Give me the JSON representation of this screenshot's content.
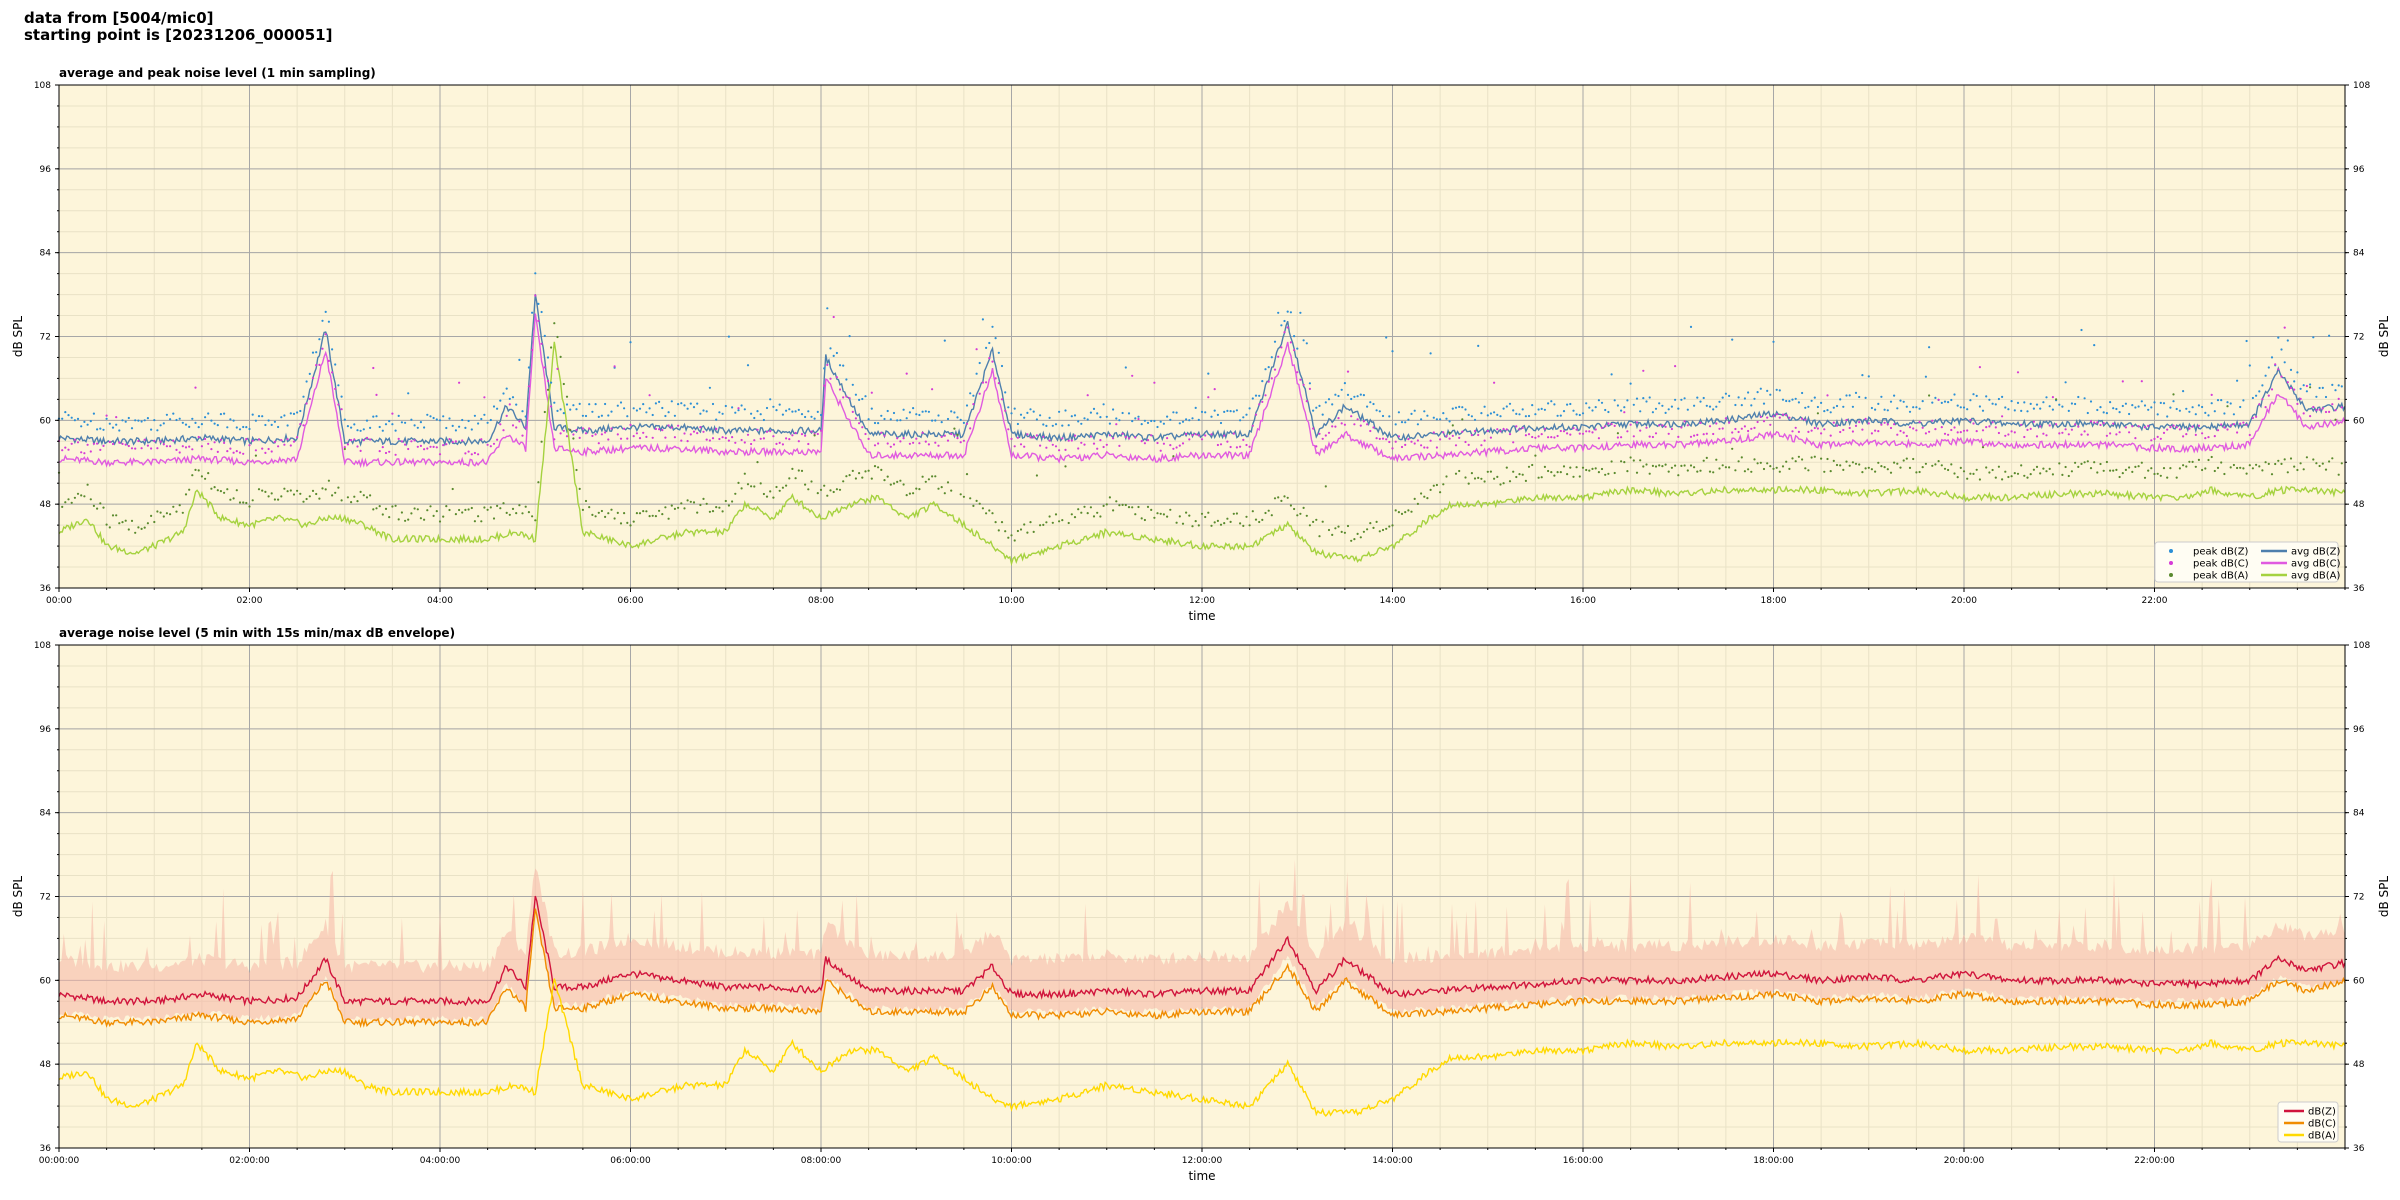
{
  "header": {
    "line1": "data from [5004/mic0]",
    "line2": "starting point is [20231206_000051]"
  },
  "colors": {
    "plot_bg": "#fdf5da",
    "grid_major": "#a7a7a7",
    "grid_minor": "#e9e2c6",
    "peak_z": "#2b8fd6",
    "peak_c": "#d63bd6",
    "peak_a": "#5a8a2e",
    "avg_z": "#4e7fad",
    "avg_c": "#e05ae0",
    "avg_a": "#a5d23f",
    "db_z": "#d0143c",
    "db_c": "#f08c00",
    "db_a": "#ffd900",
    "envelope": "#f5b5a5"
  },
  "chart_data": [
    {
      "type": "line",
      "title": "average and peak noise level (1 min sampling)",
      "xlabel": "time",
      "ylabel": "dB SPL",
      "ylabel_right": "dB SPL",
      "xlim": [
        0,
        24
      ],
      "ylim": [
        36,
        108
      ],
      "x_unit": "hours",
      "xticks": [
        0,
        2,
        4,
        6,
        8,
        10,
        12,
        14,
        16,
        18,
        20,
        22
      ],
      "xtick_labels": [
        "00:00",
        "02:00",
        "04:00",
        "06:00",
        "08:00",
        "10:00",
        "12:00",
        "14:00",
        "16:00",
        "18:00",
        "20:00",
        "22:00"
      ],
      "yticks": [
        36,
        48,
        60,
        72,
        84,
        96,
        108
      ],
      "grid": true,
      "legend_position": "lower right",
      "legend": [
        "peak dB(Z)",
        "peak dB(C)",
        "peak dB(A)",
        "avg dB(Z)",
        "avg dB(C)",
        "avg dB(A)"
      ],
      "series": [
        {
          "name": "avg dB(Z)",
          "style": "line",
          "color_key": "avg_z",
          "x": [
            0,
            0.5,
            1,
            1.5,
            2,
            2.5,
            2.8,
            3,
            3.5,
            4,
            4.5,
            4.7,
            4.9,
            5.0,
            5.2,
            5.5,
            6,
            6.5,
            7,
            7.5,
            8,
            8.05,
            8.5,
            9,
            9.5,
            9.8,
            10,
            10.5,
            11,
            11.5,
            12,
            12.5,
            12.9,
            13.2,
            13.5,
            14,
            14.5,
            15,
            15.5,
            16,
            16.5,
            17,
            17.5,
            18,
            18.5,
            19,
            19.5,
            20,
            20.5,
            21,
            21.5,
            22,
            22.5,
            23,
            23.3,
            23.6,
            24
          ],
          "y": [
            57.5,
            57,
            57,
            57.5,
            57,
            57.5,
            73,
            57,
            57,
            57,
            57,
            62,
            59,
            78,
            59,
            58.5,
            59,
            59,
            58.5,
            58.5,
            58.5,
            69,
            58,
            58,
            58,
            70,
            58,
            57.5,
            58,
            57.5,
            58,
            58,
            74,
            58,
            62,
            57.5,
            58,
            58.5,
            59,
            59,
            59.5,
            59.5,
            60,
            61,
            59.5,
            60,
            59.5,
            60,
            59.5,
            59.5,
            59.5,
            59,
            59,
            59.5,
            67,
            61.5,
            62
          ]
        },
        {
          "name": "avg dB(C)",
          "style": "line",
          "color_key": "avg_c",
          "x": [
            0,
            0.5,
            1,
            1.5,
            2,
            2.5,
            2.8,
            3,
            3.5,
            4,
            4.5,
            4.7,
            4.9,
            5.0,
            5.2,
            5.5,
            6,
            6.5,
            7,
            7.5,
            8,
            8.05,
            8.5,
            9,
            9.5,
            9.8,
            10,
            10.5,
            11,
            11.5,
            12,
            12.5,
            12.9,
            13.2,
            13.5,
            14,
            14.5,
            15,
            15.5,
            16,
            16.5,
            17,
            17.5,
            18,
            18.5,
            19,
            19.5,
            20,
            20.5,
            21,
            21.5,
            22,
            22.5,
            23,
            23.3,
            23.6,
            24
          ],
          "y": [
            54.5,
            54,
            54,
            54.5,
            54,
            54.5,
            70,
            54,
            54,
            54,
            54,
            58,
            56,
            75,
            56,
            55.5,
            56,
            56,
            55.5,
            55.5,
            55.5,
            66,
            55,
            55,
            55,
            67,
            55,
            54.5,
            55,
            54.5,
            55,
            55,
            71,
            55,
            58,
            54.5,
            55,
            55.5,
            56,
            56,
            56.5,
            56.5,
            57,
            58,
            56.5,
            57,
            56.5,
            57,
            56.5,
            56.5,
            56.5,
            56,
            56,
            56.5,
            64,
            59,
            60
          ]
        },
        {
          "name": "avg dB(A)",
          "style": "line",
          "color_key": "avg_a",
          "x": [
            0,
            0.3,
            0.5,
            0.8,
            1.0,
            1.3,
            1.45,
            1.7,
            2.0,
            2.3,
            2.6,
            2.8,
            3.0,
            3.2,
            3.5,
            4.0,
            4.5,
            4.8,
            5.0,
            5.2,
            5.5,
            6.0,
            6.3,
            6.6,
            7.0,
            7.2,
            7.5,
            7.7,
            8.0,
            8.3,
            8.6,
            8.9,
            9.2,
            9.5,
            9.8,
            10.0,
            10.5,
            11.0,
            11.5,
            12.0,
            12.5,
            12.9,
            13.2,
            13.6,
            14.0,
            14.3,
            14.6,
            15.0,
            15.5,
            16.0,
            16.5,
            17.0,
            17.5,
            18.0,
            18.5,
            19.0,
            19.5,
            20.0,
            20.5,
            21.0,
            21.5,
            22.0,
            22.3,
            22.6,
            23.0,
            23.3,
            23.7,
            24.0
          ],
          "y": [
            44,
            46,
            42,
            41,
            42,
            44,
            50,
            46,
            45,
            46,
            45,
            46,
            46,
            45,
            43,
            43,
            43,
            44,
            43,
            71,
            44,
            42,
            43,
            44,
            44,
            48,
            46,
            49,
            46,
            48,
            49,
            46,
            48,
            45,
            42,
            40,
            42,
            44,
            43,
            42,
            42,
            45,
            41,
            40,
            42,
            45,
            48,
            48,
            49,
            49,
            50,
            49.5,
            50,
            50,
            50,
            49.5,
            50,
            49,
            49,
            49.5,
            49.5,
            49,
            49,
            50,
            49,
            50,
            50,
            49.5
          ]
        },
        {
          "name": "peak dB(Z)",
          "style": "markers",
          "color_key": "peak_z",
          "derived_from": "avg dB(Z)",
          "offset": 1.5
        },
        {
          "name": "peak dB(C)",
          "style": "markers",
          "color_key": "peak_c",
          "derived_from": "avg dB(C)",
          "offset": 1.0
        },
        {
          "name": "peak dB(A)",
          "style": "markers",
          "color_key": "peak_a",
          "derived_from": "avg dB(A)",
          "offset": 2.5
        }
      ]
    },
    {
      "type": "line",
      "title": "average noise level (5 min with 15s min/max dB envelope)",
      "xlabel": "time",
      "ylabel": "dB SPL",
      "ylabel_right": "dB SPL",
      "xlim": [
        0,
        24
      ],
      "ylim": [
        36,
        108
      ],
      "x_unit": "hours",
      "xticks": [
        0,
        2,
        4,
        6,
        8,
        10,
        12,
        14,
        16,
        18,
        20,
        22
      ],
      "xtick_labels": [
        "00:00:00",
        "02:00:00",
        "04:00:00",
        "06:00:00",
        "08:00:00",
        "10:00:00",
        "12:00:00",
        "14:00:00",
        "16:00:00",
        "18:00:00",
        "20:00:00",
        "22:00:00"
      ],
      "yticks": [
        36,
        48,
        60,
        72,
        84,
        96,
        108
      ],
      "grid": true,
      "legend_position": "lower right",
      "legend": [
        "dB(Z)",
        "dB(C)",
        "dB(A)"
      ],
      "series": [
        {
          "name": "dB(Z)",
          "style": "line",
          "color_key": "db_z",
          "x": [
            0,
            0.5,
            1,
            1.5,
            2,
            2.5,
            2.8,
            3,
            3.5,
            4,
            4.5,
            4.7,
            4.9,
            5.0,
            5.2,
            5.5,
            6,
            6.5,
            7,
            7.5,
            8,
            8.05,
            8.5,
            9,
            9.5,
            9.8,
            10,
            10.5,
            11,
            11.5,
            12,
            12.5,
            12.9,
            13.2,
            13.5,
            14,
            14.5,
            15,
            15.5,
            16,
            16.5,
            17,
            17.5,
            18,
            18.5,
            19,
            19.5,
            20,
            20.5,
            21,
            21.5,
            22,
            22.5,
            23,
            23.3,
            23.6,
            24
          ],
          "y": [
            58,
            57,
            57,
            58,
            57,
            57.5,
            63,
            57,
            57,
            57,
            57,
            62,
            59,
            72,
            59,
            59,
            61,
            60,
            59,
            59,
            58.5,
            63,
            58.5,
            58.5,
            58.5,
            62,
            58,
            58,
            58.5,
            58,
            58.5,
            58.5,
            66,
            58.5,
            63,
            58,
            58.5,
            59,
            59.5,
            60,
            60,
            60,
            60.5,
            61,
            60,
            60.5,
            60,
            61,
            60,
            60,
            60,
            59.5,
            59.5,
            60,
            63,
            61.5,
            62.5
          ]
        },
        {
          "name": "dB(C)",
          "style": "line",
          "color_key": "db_c",
          "x": [
            0,
            0.5,
            1,
            1.5,
            2,
            2.5,
            2.8,
            3,
            3.5,
            4,
            4.5,
            4.7,
            4.9,
            5.0,
            5.2,
            5.5,
            6,
            6.5,
            7,
            7.5,
            8,
            8.05,
            8.5,
            9,
            9.5,
            9.8,
            10,
            10.5,
            11,
            11.5,
            12,
            12.5,
            12.9,
            13.2,
            13.5,
            14,
            14.5,
            15,
            15.5,
            16,
            16.5,
            17,
            17.5,
            18,
            18.5,
            19,
            19.5,
            20,
            20.5,
            21,
            21.5,
            22,
            22.5,
            23,
            23.3,
            23.6,
            24
          ],
          "y": [
            55,
            54,
            54,
            55,
            54,
            54.5,
            60,
            54,
            54,
            54,
            54,
            59,
            56,
            70,
            56,
            56,
            58,
            57,
            56,
            56,
            55.5,
            60,
            55.5,
            55.5,
            55.5,
            59,
            55,
            55,
            55.5,
            55,
            55.5,
            55.5,
            62,
            55.5,
            60,
            55,
            55.5,
            56,
            56.5,
            57,
            57,
            57,
            57.5,
            58,
            57,
            57.5,
            57,
            58,
            57,
            57,
            57,
            56.5,
            56.5,
            57,
            60,
            58.5,
            60
          ]
        },
        {
          "name": "dB(A)",
          "style": "line",
          "color_key": "db_a",
          "x": [
            0,
            0.3,
            0.5,
            0.8,
            1.0,
            1.3,
            1.45,
            1.7,
            2.0,
            2.3,
            2.6,
            2.8,
            3.0,
            3.2,
            3.5,
            4.0,
            4.5,
            4.8,
            5.0,
            5.2,
            5.5,
            6.0,
            6.3,
            6.6,
            7.0,
            7.2,
            7.5,
            7.7,
            8.0,
            8.3,
            8.6,
            8.9,
            9.2,
            9.5,
            9.8,
            10.0,
            10.5,
            11.0,
            11.5,
            12.0,
            12.5,
            12.9,
            13.2,
            13.6,
            14.0,
            14.3,
            14.6,
            15.0,
            15.5,
            16.0,
            16.5,
            17.0,
            17.5,
            18.0,
            18.5,
            19.0,
            19.5,
            20.0,
            20.5,
            21.0,
            21.5,
            22.0,
            22.3,
            22.6,
            23.0,
            23.3,
            23.7,
            24.0
          ],
          "y": [
            46,
            47,
            43,
            42,
            43,
            45,
            51,
            47,
            46,
            47,
            46,
            47,
            47,
            45,
            44,
            44,
            44,
            45,
            44,
            60,
            45,
            43,
            44,
            45,
            45,
            50,
            47,
            51,
            47,
            50,
            50,
            47,
            49,
            46,
            43,
            42,
            43,
            45,
            44,
            43,
            42,
            48,
            41,
            41,
            43,
            46,
            49,
            49,
            50,
            50,
            51,
            50.5,
            51,
            51,
            51,
            50.5,
            51,
            50,
            50,
            50.5,
            50.5,
            50,
            50,
            51,
            50,
            51,
            51,
            50.5
          ]
        },
        {
          "name": "envelope",
          "style": "area",
          "color_key": "envelope",
          "derived_from": "dB(Z)",
          "range": [
            -3,
            4
          ]
        }
      ]
    }
  ]
}
